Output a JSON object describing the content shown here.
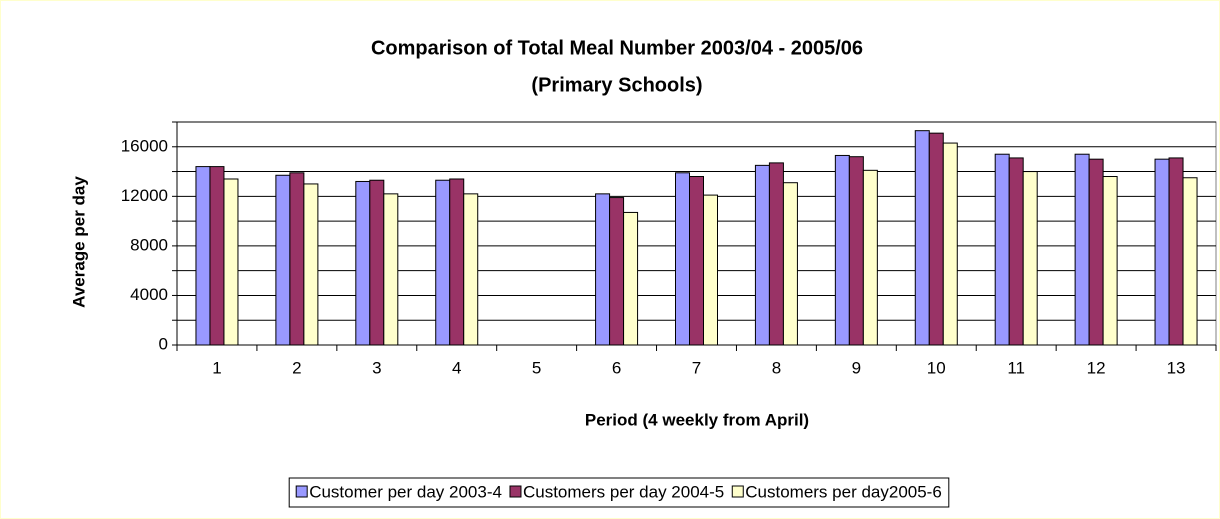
{
  "chart_data": {
    "type": "bar",
    "title": [
      "Comparison of Total Meal Number 2003/04 - 2005/06",
      "(Primary Schools)"
    ],
    "x_label": "Period (4 weekly from April)",
    "y_label": "Average per day",
    "categories": [
      "1",
      "2",
      "3",
      "4",
      "5",
      "6",
      "7",
      "8",
      "9",
      "10",
      "11",
      "12",
      "13"
    ],
    "series": [
      {
        "name": "Customer per day 2003-4",
        "color": "#9999ff",
        "values": [
          14400,
          13700,
          13200,
          13300,
          null,
          12200,
          13900,
          14500,
          15300,
          17300,
          15400,
          15400,
          15000
        ]
      },
      {
        "name": "Customers per day 2004-5",
        "color": "#993366",
        "values": [
          14400,
          13900,
          13300,
          13400,
          null,
          11900,
          13600,
          14700,
          15200,
          17100,
          15100,
          15000,
          15100
        ]
      },
      {
        "name": "Customers per day2005-6",
        "color": "#ffffcc",
        "values": [
          13400,
          13000,
          12200,
          12200,
          null,
          10700,
          12100,
          13100,
          14100,
          16300,
          14000,
          13600,
          13500
        ]
      }
    ],
    "ylim": [
      0,
      18000
    ],
    "yticks": [
      0,
      4000,
      8000,
      12000,
      16000
    ],
    "minor_yticks": [
      2000,
      6000,
      10000,
      14000,
      18000
    ],
    "grid": true,
    "legend": "bottom"
  }
}
